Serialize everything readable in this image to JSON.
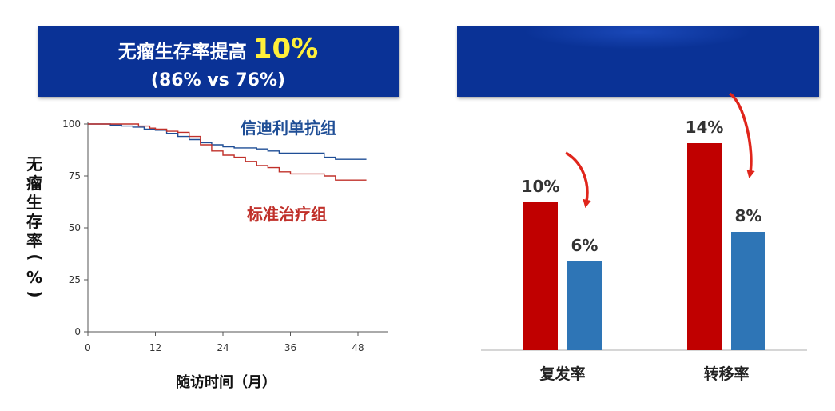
{
  "banner": {
    "title_prefix": "无瘤生存率提高",
    "title_highlight": "10%",
    "subtitle": "(86% vs 76%)"
  },
  "colors": {
    "banner_bg": "#0a3296",
    "highlight": "#ffef3a",
    "series_blue": "#1f4e96",
    "series_red": "#c0302a",
    "bar_red": "#c00000",
    "bar_blue": "#2e75b6"
  },
  "chart_data": [
    {
      "type": "line",
      "xlabel": "随访时间（月）",
      "ylabel": "无瘤生存率（%）",
      "xlim": [
        0,
        52
      ],
      "ylim": [
        0,
        100
      ],
      "xticks": [
        0,
        12,
        24,
        36,
        48
      ],
      "yticks": [
        0,
        25,
        50,
        75,
        100
      ],
      "grid": false,
      "series": [
        {
          "name": "信迪利单抗组",
          "color": "#1f4e96",
          "points": [
            [
              0,
              100
            ],
            [
              2,
              100
            ],
            [
              4,
              99.5
            ],
            [
              6,
              99
            ],
            [
              8,
              98.5
            ],
            [
              10,
              97.5
            ],
            [
              12,
              97
            ],
            [
              14,
              95.5
            ],
            [
              16,
              94
            ],
            [
              18,
              92.5
            ],
            [
              20,
              91
            ],
            [
              22,
              90
            ],
            [
              24,
              89
            ],
            [
              26,
              88.5
            ],
            [
              28,
              88.5
            ],
            [
              30,
              88
            ],
            [
              32,
              87
            ],
            [
              34,
              86
            ],
            [
              36,
              86
            ],
            [
              38,
              86
            ],
            [
              40,
              86
            ],
            [
              42,
              84
            ],
            [
              44,
              83
            ],
            [
              46,
              83
            ],
            [
              48,
              83
            ],
            [
              49.5,
              83
            ]
          ]
        },
        {
          "name": "标准治疗组",
          "color": "#c0302a",
          "points": [
            [
              0,
              100
            ],
            [
              3,
              100
            ],
            [
              6,
              100
            ],
            [
              9,
              99
            ],
            [
              11,
              98
            ],
            [
              12,
              97.5
            ],
            [
              14,
              96.5
            ],
            [
              16,
              96
            ],
            [
              18,
              94
            ],
            [
              20,
              90
            ],
            [
              22,
              87
            ],
            [
              24,
              85
            ],
            [
              26,
              84
            ],
            [
              28,
              82
            ],
            [
              30,
              80
            ],
            [
              32,
              79
            ],
            [
              34,
              77
            ],
            [
              36,
              76
            ],
            [
              38,
              76
            ],
            [
              40,
              76
            ],
            [
              42,
              75
            ],
            [
              44,
              73
            ],
            [
              46,
              73
            ],
            [
              48,
              73
            ],
            [
              49.5,
              73
            ]
          ]
        }
      ]
    },
    {
      "type": "bar",
      "categories": [
        "复发率",
        "转移率"
      ],
      "series": [
        {
          "color": "#c00000",
          "values": [
            10,
            14
          ]
        },
        {
          "color": "#2e75b6",
          "values": [
            6,
            8
          ]
        }
      ],
      "value_labels": [
        [
          "10%",
          "14%"
        ],
        [
          "6%",
          "8%"
        ]
      ],
      "ylim": [
        0,
        16
      ],
      "annotations": "red downward arrows from first bar to second bar in each group"
    }
  ]
}
